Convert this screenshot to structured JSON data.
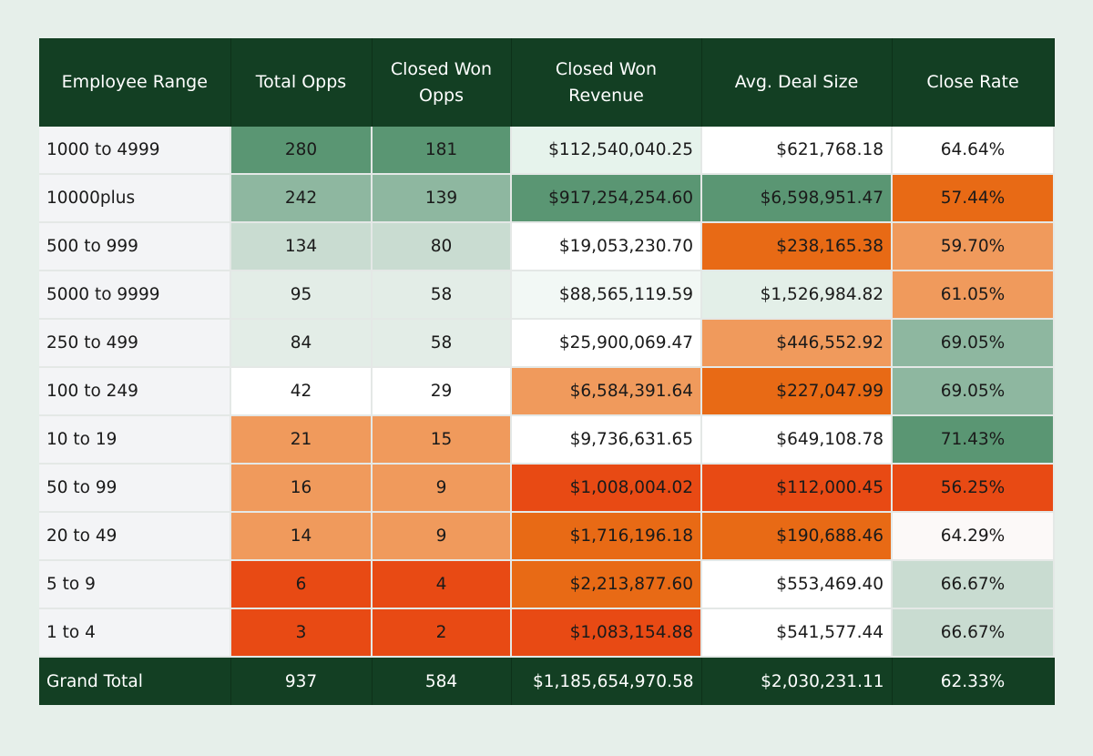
{
  "chart_data": {
    "type": "table",
    "columns": [
      "Employee Range",
      "Total Opps",
      "Closed Won Opps",
      "Closed Won Revenue",
      "Avg. Deal Size",
      "Close Rate"
    ],
    "rows": [
      {
        "cells": [
          "1000 to 4999",
          "280",
          "181",
          "$112,540,040.25",
          "$621,768.18",
          "64.64%"
        ],
        "colors": [
          "#5a9673",
          "#5a9673",
          "#e6f3ec",
          "#ffffff",
          "#ffffff"
        ]
      },
      {
        "cells": [
          "10000plus",
          "242",
          "139",
          "$917,254,254.60",
          "$6,598,951.47",
          "57.44%"
        ],
        "colors": [
          "#8eb7a0",
          "#8eb7a0",
          "#5a9673",
          "#5a9673",
          "#e86a15"
        ]
      },
      {
        "cells": [
          "500 to 999",
          "134",
          "80",
          "$19,053,230.70",
          "$238,165.38",
          "59.70%"
        ],
        "colors": [
          "#c9dcd1",
          "#c9dcd1",
          "#ffffff",
          "#e86a15",
          "#f09a5c"
        ]
      },
      {
        "cells": [
          "5000 to 9999",
          "95",
          "58",
          "$88,565,119.59",
          "$1,526,984.82",
          "61.05%"
        ],
        "colors": [
          "#e3ede7",
          "#e3ede7",
          "#f2f8f5",
          "#e3efe8",
          "#f09a5c"
        ]
      },
      {
        "cells": [
          "250 to 499",
          "84",
          "58",
          "$25,900,069.47",
          "$446,552.92",
          "69.05%"
        ],
        "colors": [
          "#e3ede7",
          "#e3ede7",
          "#ffffff",
          "#f09a5c",
          "#8eb7a0"
        ]
      },
      {
        "cells": [
          "100 to 249",
          "42",
          "29",
          "$6,584,391.64",
          "$227,047.99",
          "69.05%"
        ],
        "colors": [
          "#ffffff",
          "#ffffff",
          "#f09a5c",
          "#e86a15",
          "#8eb7a0"
        ]
      },
      {
        "cells": [
          "10 to 19",
          "21",
          "15",
          "$9,736,631.65",
          "$649,108.78",
          "71.43%"
        ],
        "colors": [
          "#f09a5c",
          "#f09a5c",
          "#ffffff",
          "#ffffff",
          "#5a9673"
        ]
      },
      {
        "cells": [
          "50 to 99",
          "16",
          "9",
          "$1,008,004.02",
          "$112,000.45",
          "56.25%"
        ],
        "colors": [
          "#f09a5c",
          "#f09a5c",
          "#e84a14",
          "#e84a14",
          "#e84a14"
        ]
      },
      {
        "cells": [
          "20 to 49",
          "14",
          "9",
          "$1,716,196.18",
          "$190,688.46",
          "64.29%"
        ],
        "colors": [
          "#f09a5c",
          "#f09a5c",
          "#e86a15",
          "#e86a15",
          "#fcf9f8"
        ]
      },
      {
        "cells": [
          "5 to 9",
          "6",
          "4",
          "$2,213,877.60",
          "$553,469.40",
          "66.67%"
        ],
        "colors": [
          "#e84a14",
          "#e84a14",
          "#e86a15",
          "#ffffff",
          "#c9dcd1"
        ]
      },
      {
        "cells": [
          "1 to 4",
          "3",
          "2",
          "$1,083,154.88",
          "$541,577.44",
          "66.67%"
        ],
        "colors": [
          "#e84a14",
          "#e84a14",
          "#e84a14",
          "#ffffff",
          "#c9dcd1"
        ]
      }
    ],
    "total": [
      "Grand Total",
      "937",
      "584",
      "$1,185,654,970.58",
      "$2,030,231.11",
      "62.33%"
    ],
    "header_color": "#133f23",
    "label_color": "#f3f4f6"
  }
}
